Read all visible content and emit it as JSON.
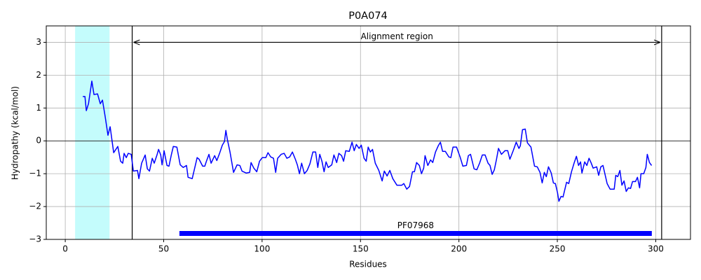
{
  "chart_data": {
    "type": "line",
    "title": "P0A074",
    "xlabel": "Residues",
    "ylabel": "Hydropathy (kcal/mol)",
    "xlim": [
      -9.65,
      317.65
    ],
    "ylim": [
      -3,
      3.5
    ],
    "xticks": [
      0,
      50,
      100,
      150,
      200,
      250,
      300
    ],
    "yticks": [
      {
        "value": -3,
        "label": "−3"
      },
      {
        "value": -2,
        "label": "−2"
      },
      {
        "value": -1,
        "label": "−1"
      },
      0,
      1,
      2,
      3
    ],
    "grid": true,
    "x": [
      8.9,
      10,
      10.7,
      11.8,
      13.5,
      14.6,
      16.4,
      17.8,
      18.9,
      20.3,
      21.7,
      22.8,
      24.6,
      26.7,
      28.1,
      29.2,
      29.9,
      31,
      32,
      33.5,
      34.6,
      36.7,
      37.4,
      38.8,
      40.6,
      41.7,
      42.8,
      44.2,
      45.2,
      46.7,
      47.4,
      48.5,
      49.2,
      50.2,
      51.7,
      52.7,
      53.8,
      54.9,
      56.7,
      58.4,
      59.9,
      61.6,
      62.4,
      64.5,
      67,
      68,
      69.8,
      70.9,
      71.6,
      73,
      74.1,
      75.9,
      77,
      78.4,
      79.8,
      80.9,
      81.6,
      82.3,
      83.7,
      85.5,
      87.3,
      88.7,
      89.8,
      91.9,
      93.7,
      94.4,
      95.8,
      97.3,
      98.7,
      100.1,
      101.9,
      103,
      104.4,
      105.8,
      106.9,
      107.9,
      109.7,
      111.2,
      112.6,
      114,
      115.4,
      116.9,
      117.9,
      119,
      120.1,
      121.5,
      122.9,
      124.3,
      125.8,
      127.2,
      128.3,
      129.3,
      130.4,
      131.5,
      132.5,
      133.6,
      135.4,
      136.5,
      137.9,
      139,
      140.4,
      141.4,
      142.5,
      144.3,
      145.7,
      146.8,
      147.9,
      149.3,
      150.4,
      151.8,
      152.9,
      153.9,
      155,
      156.1,
      157.5,
      159.3,
      161,
      162.1,
      163.5,
      164.9,
      166.4,
      168.5,
      171,
      172,
      173.5,
      174.9,
      176.4,
      177.4,
      178.5,
      179.9,
      181,
      182.1,
      182.8,
      184.2,
      185.6,
      186.7,
      188.1,
      189.5,
      190.6,
      191.7,
      193.1,
      194.9,
      195.9,
      197,
      198.8,
      200.6,
      202,
      203.8,
      204.8,
      205.9,
      207.7,
      209.1,
      210.5,
      211.9,
      213.3,
      214.8,
      215.8,
      216.9,
      218,
      219.1,
      220.1,
      221.6,
      223.4,
      224.8,
      225.9,
      227.7,
      229.1,
      230.5,
      231.2,
      232.3,
      233.7,
      234.8,
      236.6,
      238.4,
      239.8,
      241.2,
      242.3,
      243.4,
      244.4,
      245.5,
      246.9,
      248,
      249,
      250.1,
      250.8,
      251.9,
      252.9,
      254.7,
      255.8,
      257.2,
      258.6,
      259.7,
      260.8,
      261.8,
      262.5,
      263.9,
      265,
      266.1,
      267.1,
      268.2,
      270,
      271,
      272.1,
      273.2,
      275.3,
      276.8,
      278.9,
      279.7,
      280.7,
      281.8,
      282.8,
      283.9,
      285,
      286.1,
      287.2,
      288.2,
      289.7,
      290.7,
      291.8,
      292.5,
      293.9,
      295,
      295.7,
      296.8,
      297.9
    ],
    "series": [
      {
        "color": "#0000ff",
        "values": [
          1.35,
          1.35,
          0.92,
          1.13,
          1.82,
          1.41,
          1.43,
          1.13,
          1.24,
          0.73,
          0.17,
          0.43,
          -0.36,
          -0.17,
          -0.62,
          -0.68,
          -0.38,
          -0.51,
          -0.38,
          -0.41,
          -0.92,
          -0.9,
          -1.15,
          -0.68,
          -0.43,
          -0.85,
          -0.92,
          -0.53,
          -0.68,
          -0.41,
          -0.26,
          -0.43,
          -0.73,
          -0.3,
          -0.75,
          -0.77,
          -0.45,
          -0.17,
          -0.19,
          -0.73,
          -0.81,
          -0.75,
          -1.11,
          -1.15,
          -0.51,
          -0.56,
          -0.77,
          -0.77,
          -0.64,
          -0.41,
          -0.68,
          -0.45,
          -0.6,
          -0.38,
          -0.13,
          -0.02,
          0.32,
          0.06,
          -0.34,
          -0.96,
          -0.73,
          -0.75,
          -0.92,
          -0.98,
          -0.96,
          -0.66,
          -0.83,
          -0.94,
          -0.62,
          -0.51,
          -0.51,
          -0.36,
          -0.49,
          -0.53,
          -0.96,
          -0.53,
          -0.41,
          -0.38,
          -0.53,
          -0.49,
          -0.34,
          -0.56,
          -0.73,
          -1.0,
          -0.68,
          -1.0,
          -0.9,
          -0.7,
          -0.34,
          -0.34,
          -0.81,
          -0.41,
          -0.62,
          -0.94,
          -0.64,
          -0.81,
          -0.73,
          -0.43,
          -0.66,
          -0.38,
          -0.45,
          -0.62,
          -0.3,
          -0.32,
          -0.04,
          -0.3,
          -0.11,
          -0.23,
          -0.13,
          -0.53,
          -0.62,
          -0.19,
          -0.34,
          -0.26,
          -0.68,
          -0.9,
          -1.22,
          -0.92,
          -1.07,
          -0.9,
          -1.15,
          -1.35,
          -1.35,
          -1.3,
          -1.47,
          -1.39,
          -0.94,
          -0.94,
          -0.66,
          -0.75,
          -1.0,
          -0.83,
          -0.45,
          -0.75,
          -0.58,
          -0.66,
          -0.34,
          -0.15,
          -0.04,
          -0.32,
          -0.32,
          -0.49,
          -0.51,
          -0.19,
          -0.19,
          -0.49,
          -0.77,
          -0.75,
          -0.45,
          -0.41,
          -0.85,
          -0.88,
          -0.68,
          -0.43,
          -0.43,
          -0.68,
          -0.75,
          -1.02,
          -0.88,
          -0.56,
          -0.23,
          -0.41,
          -0.3,
          -0.3,
          -0.56,
          -0.28,
          -0.04,
          -0.23,
          -0.15,
          0.34,
          0.36,
          -0.06,
          -0.19,
          -0.77,
          -0.79,
          -0.96,
          -1.28,
          -0.96,
          -1.09,
          -0.79,
          -0.98,
          -1.28,
          -1.3,
          -1.58,
          -1.84,
          -1.69,
          -1.71,
          -1.26,
          -1.3,
          -0.94,
          -0.66,
          -0.47,
          -0.75,
          -0.64,
          -0.98,
          -0.64,
          -0.75,
          -0.53,
          -0.66,
          -0.83,
          -0.79,
          -1.05,
          -0.79,
          -0.75,
          -1.3,
          -1.47,
          -1.47,
          -1.05,
          -1.09,
          -0.9,
          -1.35,
          -1.22,
          -1.54,
          -1.43,
          -1.45,
          -1.24,
          -1.24,
          -1.11,
          -1.43,
          -1.0,
          -1.0,
          -0.81,
          -0.41,
          -0.66,
          -0.75
        ]
      }
    ],
    "span": {
      "x": [
        5,
        22.5
      ],
      "color": "#c4fcfc"
    },
    "hline": 0,
    "vlines": [
      34,
      303
    ],
    "region": {
      "label": "Alignment region",
      "x": [
        34,
        303
      ],
      "y": 3
    },
    "domain": {
      "label": "PF07968",
      "x": [
        58,
        298
      ],
      "y": -2.82,
      "color": "#0000ff"
    }
  }
}
